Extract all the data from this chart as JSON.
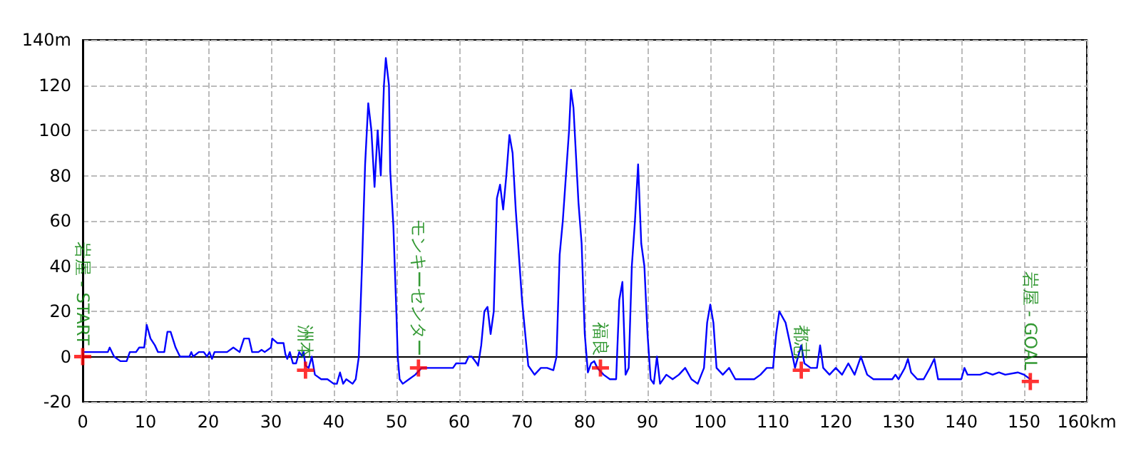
{
  "chart_data": {
    "type": "line",
    "xlim": [
      0,
      160
    ],
    "xticks": [
      0,
      10,
      20,
      30,
      40,
      50,
      60,
      70,
      80,
      90,
      100,
      110,
      120,
      130,
      140,
      150,
      {
        "value": 160,
        "label": "160km"
      }
    ],
    "ylim": [
      -20,
      140
    ],
    "yticks": [
      -20,
      0,
      20,
      40,
      60,
      80,
      100,
      120,
      {
        "value": 140,
        "label": "140m"
      }
    ],
    "grid": true,
    "marker": "none",
    "line_style": "solid",
    "series": [
      {
        "color": "#0000ff",
        "x": [
          0,
          4,
          4.3,
          5,
          6,
          7,
          7.5,
          8.5,
          9,
          9.8,
          10.2,
          10.8,
          11.5,
          12,
          13,
          13.5,
          14,
          14.8,
          15.5,
          17,
          17.3,
          17.6,
          18.5,
          19.3,
          19.8,
          20.2,
          20.6,
          21,
          23,
          24,
          25,
          25.7,
          26.5,
          27,
          28,
          28.5,
          29,
          30,
          30.2,
          31,
          32,
          32.3,
          32.6,
          33,
          33.5,
          34,
          34.5,
          35,
          35.2,
          35.5,
          36,
          36.5,
          37,
          38,
          39,
          40,
          40.5,
          41,
          41.5,
          42,
          43,
          43.5,
          44,
          44.5,
          45,
          45.5,
          46,
          46.5,
          47,
          47.5,
          48,
          48.3,
          48.8,
          49,
          49.5,
          50,
          50.2,
          50.5,
          51,
          52,
          53,
          54,
          59,
          59.5,
          61,
          61.5,
          62,
          62.8,
          63,
          63.5,
          64,
          64.5,
          65,
          65.5,
          66,
          66.5,
          67,
          67.5,
          68,
          68.5,
          69,
          70,
          71,
          72,
          73,
          74,
          75,
          75.5,
          76,
          76.5,
          77,
          77.5,
          77.8,
          78.2,
          79,
          79.5,
          80,
          80.5,
          81,
          81.5,
          82,
          83,
          84,
          85,
          85.5,
          86,
          86.5,
          87,
          87.5,
          88,
          88.5,
          89,
          89.5,
          90,
          90.5,
          91,
          91.5,
          92,
          93,
          94,
          95,
          96,
          97,
          98,
          99,
          99.5,
          100,
          100.5,
          101,
          102,
          103,
          104,
          105,
          107,
          108,
          109,
          110,
          110.5,
          111,
          112,
          113,
          113.5,
          114,
          114.5,
          115,
          116,
          117,
          117.5,
          118,
          119,
          120,
          121,
          122,
          123,
          124,
          125,
          126,
          129,
          129.5,
          130,
          131,
          131.5,
          132,
          133,
          134,
          135,
          135.7,
          136.3,
          140,
          140.5,
          141,
          143,
          144,
          145,
          146,
          147,
          149,
          150,
          151
        ],
        "values": [
          2,
          2,
          4,
          0,
          -2,
          -2,
          2,
          2,
          4,
          4,
          14,
          8,
          5,
          2,
          2,
          11,
          11,
          4,
          0,
          0,
          2,
          0,
          2,
          2,
          0,
          2,
          -1,
          2,
          2,
          4,
          2,
          8,
          8,
          2,
          2,
          3,
          2,
          4,
          8,
          6,
          6,
          1,
          -1,
          2,
          -3,
          -3,
          2,
          0,
          2,
          -4,
          -5,
          0,
          -8,
          -10,
          -10,
          -12,
          -12,
          -7,
          -12,
          -10,
          -12,
          -10,
          0,
          40,
          85,
          112,
          100,
          75,
          100,
          80,
          120,
          132,
          120,
          82,
          58,
          18,
          0,
          -10,
          -12,
          -10,
          -8,
          -5,
          -5,
          -3,
          -3,
          0,
          0,
          -3,
          -4,
          5,
          20,
          22,
          10,
          20,
          70,
          76,
          65,
          80,
          98,
          90,
          65,
          25,
          -4,
          -8,
          -5,
          -5,
          -6,
          0,
          45,
          60,
          80,
          100,
          118,
          110,
          68,
          50,
          10,
          -7,
          -3,
          -2,
          -5,
          -8,
          -10,
          -10,
          25,
          33,
          -8,
          -5,
          40,
          60,
          85,
          50,
          40,
          10,
          -10,
          -12,
          0,
          -12,
          -8,
          -10,
          -8,
          -5,
          -10,
          -12,
          -5,
          15,
          23,
          15,
          -5,
          -8,
          -5,
          -10,
          -10,
          -10,
          -8,
          -5,
          -5,
          10,
          20,
          15,
          2,
          -5,
          0,
          5,
          -3,
          -5,
          -5,
          5,
          -5,
          -8,
          -5,
          -8,
          -3,
          -8,
          0,
          -8,
          -10,
          -10,
          -8,
          -10,
          -5,
          -1,
          -7,
          -10,
          -10,
          -5,
          -1,
          -10,
          -10,
          -5,
          -8,
          -8,
          -7,
          -8,
          -7,
          -8,
          -7,
          -8,
          -10
        ]
      },
      {
        "type": "scatter",
        "color": "#ff0000",
        "marker": "cross",
        "x": [
          0,
          35.5,
          53.5,
          82.5,
          114.5,
          151
        ],
        "values": [
          0,
          -6,
          -5,
          -5,
          -6,
          -11
        ]
      }
    ],
    "annotations": [
      {
        "text": "岩屋 - START",
        "x": 0,
        "y": 0
      },
      {
        "text": "洲本",
        "x": 35.5,
        "y": -6
      },
      {
        "text": "モンキーセンター",
        "x": 53.5,
        "y": -5
      },
      {
        "text": "福良",
        "x": 82.5,
        "y": -5
      },
      {
        "text": "都志",
        "x": 114.5,
        "y": -6
      },
      {
        "text": "岩屋 - GOAL",
        "x": 151,
        "y": -11
      }
    ]
  }
}
